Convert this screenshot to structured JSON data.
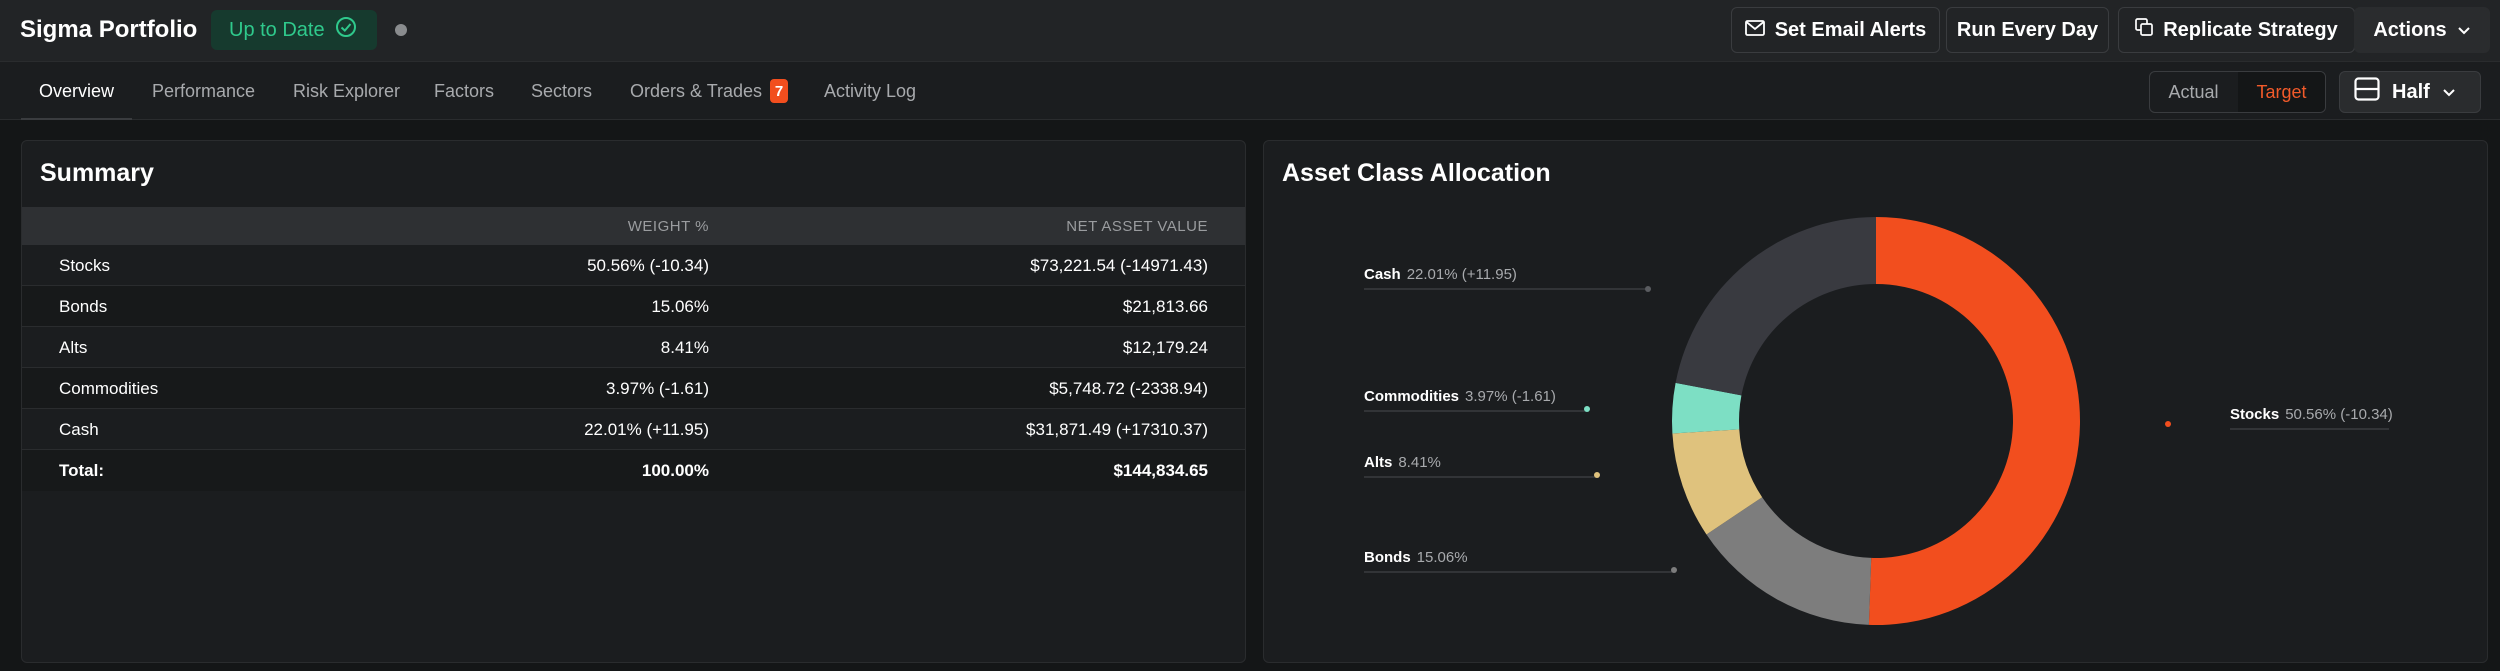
{
  "header": {
    "title": "Sigma Portfolio",
    "status": "Up to Date",
    "buttons": {
      "email_alerts": "Set Email Alerts",
      "run_every_day": "Run Every Day",
      "replicate": "Replicate Strategy",
      "actions": "Actions"
    }
  },
  "tabs": [
    {
      "label": "Overview",
      "active": true
    },
    {
      "label": "Performance"
    },
    {
      "label": "Risk Explorer"
    },
    {
      "label": "Factors"
    },
    {
      "label": "Sectors"
    },
    {
      "label": "Orders & Trades",
      "badge": "7"
    },
    {
      "label": "Activity Log"
    }
  ],
  "view_toggle": {
    "actual": "Actual",
    "target": "Target",
    "selected": "Target"
  },
  "layout_select": {
    "label": "Half"
  },
  "summary": {
    "title": "Summary",
    "columns": {
      "weight": "WEIGHT %",
      "nav": "NET ASSET VALUE"
    },
    "rows": [
      {
        "name": "Stocks",
        "weight": "50.56% (-10.34)",
        "nav": "$73,221.54 (-14971.43)"
      },
      {
        "name": "Bonds",
        "weight": "15.06%",
        "nav": "$21,813.66"
      },
      {
        "name": "Alts",
        "weight": "8.41%",
        "nav": "$12,179.24"
      },
      {
        "name": "Commodities",
        "weight": "3.97% (-1.61)",
        "nav": "$5,748.72 (-2338.94)"
      },
      {
        "name": "Cash",
        "weight": "22.01% (+11.95)",
        "nav": "$31,871.49 (+17310.37)"
      }
    ],
    "total": {
      "name": "Total:",
      "weight": "100.00%",
      "nav": "$144,834.65"
    }
  },
  "allocation": {
    "title": "Asset Class Allocation",
    "chart_data": {
      "type": "pie",
      "donut": true,
      "slices": [
        {
          "name": "Stocks",
          "value": 50.56,
          "label_value": "50.56% (-10.34)",
          "color": "#f24e1e"
        },
        {
          "name": "Bonds",
          "value": 15.06,
          "label_value": "15.06%",
          "color": "#7d7d7d"
        },
        {
          "name": "Alts",
          "value": 8.41,
          "label_value": "8.41%",
          "color": "#dfc27d"
        },
        {
          "name": "Commodities",
          "value": 3.97,
          "label_value": "3.97% (-1.61)",
          "color": "#7ddfc4"
        },
        {
          "name": "Cash",
          "value": 22.01,
          "label_value": "22.01% (+11.95)",
          "color": "#393a40"
        }
      ]
    }
  },
  "colors": {
    "accent": "#f24e1e",
    "status_green": "#2fc98c"
  }
}
